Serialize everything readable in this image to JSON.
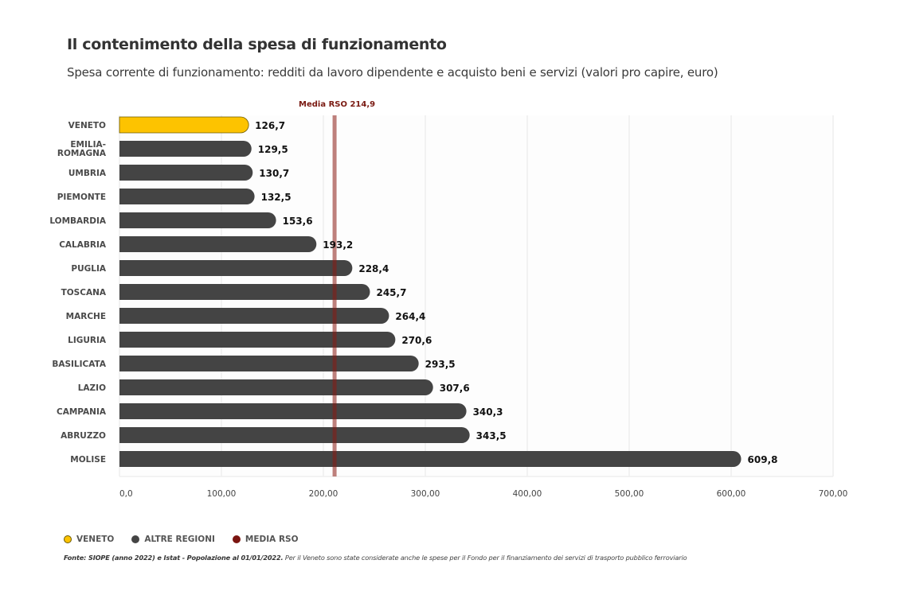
{
  "header": {
    "title": "Il contenimento della spesa di funzionamento",
    "subtitle": "Spesa corrente di funzionamento: redditi da lavoro dipendente  e acquisto beni e servizi (valori pro capire, euro)"
  },
  "legend": [
    {
      "label": "VENETO",
      "color": "#FDC300"
    },
    {
      "label": "ALTRE REGIONI",
      "color": "#444444"
    },
    {
      "label": "MEDIA RSO",
      "color": "#7B1510"
    }
  ],
  "source": {
    "bold": "Fonte: SIOPE (anno 2022) e Istat - Popolazione al 01/01/2022.",
    "note": " Per il Veneto sono state considerate anche le spese per il Fondo per il finanziamento dei servizi di trasporto pubblico ferroviario"
  },
  "colors": {
    "highlight": "#FDC300",
    "highlight_border": "#6b5a00",
    "other": "#444444",
    "media_line": "#B5706B",
    "grid": "#EEEEEE"
  },
  "chart_data": {
    "type": "bar",
    "orientation": "horizontal",
    "title": "Il contenimento della spesa di funzionamento",
    "subtitle": "Spesa corrente di funzionamento: redditi da lavoro dipendente  e acquisto beni e servizi (valori pro capire, euro)",
    "xlabel": "",
    "ylabel": "",
    "xlim": [
      0,
      700
    ],
    "grid": true,
    "legend_position": "bottom-left",
    "categories": [
      "VENETO",
      "EMILIA-ROMAGNA",
      "UMBRIA",
      "PIEMONTE",
      "LOMBARDIA",
      "CALABRIA",
      "PUGLIA",
      "TOSCANA",
      "MARCHE",
      "LIGURIA",
      "BASILICATA",
      "LAZIO",
      "CAMPANIA",
      "ABRUZZO",
      "MOLISE"
    ],
    "category_lines": [
      [
        "VENETO"
      ],
      [
        "EMILIA-",
        "ROMAGNA"
      ],
      [
        "UMBRIA"
      ],
      [
        "PIEMONTE"
      ],
      [
        "LOMBARDIA"
      ],
      [
        "CALABRIA"
      ],
      [
        "PUGLIA"
      ],
      [
        "TOSCANA"
      ],
      [
        "MARCHE"
      ],
      [
        "LIGURIA"
      ],
      [
        "BASILICATA"
      ],
      [
        "LAZIO"
      ],
      [
        "CAMPANIA"
      ],
      [
        "ABRUZZO"
      ],
      [
        "MOLISE"
      ]
    ],
    "values": [
      126.7,
      129.5,
      130.7,
      132.5,
      153.6,
      193.2,
      228.4,
      245.7,
      264.4,
      270.6,
      293.5,
      307.6,
      340.3,
      343.5,
      609.8
    ],
    "value_labels": [
      "126,7",
      "129,5",
      "130,7",
      "132,5",
      "153,6",
      "193,2",
      "228,4",
      "245,7",
      "264,4",
      "270,6",
      "293,5",
      "307,6",
      "340,3",
      "343,5",
      "609,8"
    ],
    "highlight": "VENETO",
    "x_ticks": [
      0,
      100,
      200,
      300,
      400,
      500,
      600,
      700
    ],
    "x_tick_labels": [
      "0,0",
      "100,00",
      "200,00",
      "300,00",
      "400,00",
      "500,00",
      "600,00",
      "700,00"
    ],
    "reference_line": {
      "label": "Media RSO 214,9",
      "value": 214.9,
      "displayed_at": 211
    }
  }
}
